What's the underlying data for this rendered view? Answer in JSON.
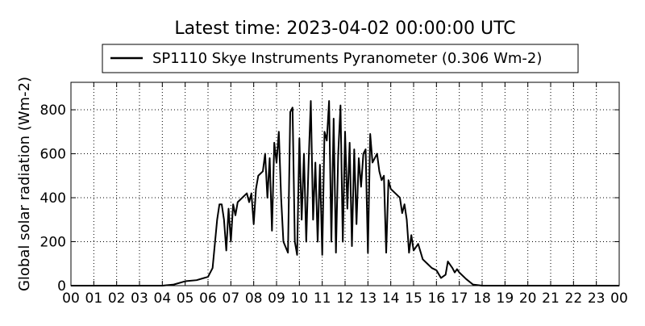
{
  "chart_data": {
    "type": "line",
    "title": "Latest time: 2023-04-02 00:00:00 UTC",
    "y_label": "Global solar radiation (Wm-2)",
    "legend_position": "upper center",
    "grid": true,
    "xlim": [
      0,
      24
    ],
    "xticks": [
      {
        "value": 0,
        "label": "00"
      },
      {
        "value": 1,
        "label": "01"
      },
      {
        "value": 2,
        "label": "02"
      },
      {
        "value": 3,
        "label": "03"
      },
      {
        "value": 4,
        "label": "04"
      },
      {
        "value": 5,
        "label": "05"
      },
      {
        "value": 6,
        "label": "06"
      },
      {
        "value": 7,
        "label": "07"
      },
      {
        "value": 8,
        "label": "08"
      },
      {
        "value": 9,
        "label": "09"
      },
      {
        "value": 10,
        "label": "10"
      },
      {
        "value": 11,
        "label": "11"
      },
      {
        "value": 12,
        "label": "12"
      },
      {
        "value": 13,
        "label": "13"
      },
      {
        "value": 14,
        "label": "14"
      },
      {
        "value": 15,
        "label": "15"
      },
      {
        "value": 16,
        "label": "16"
      },
      {
        "value": 17,
        "label": "17"
      },
      {
        "value": 18,
        "label": "18"
      },
      {
        "value": 19,
        "label": "19"
      },
      {
        "value": 20,
        "label": "20"
      },
      {
        "value": 21,
        "label": "21"
      },
      {
        "value": 22,
        "label": "22"
      },
      {
        "value": 23,
        "label": "23"
      },
      {
        "value": 24,
        "label": "00"
      }
    ],
    "ylim": [
      0,
      925
    ],
    "yticks": [
      0,
      200,
      400,
      600,
      800
    ],
    "x": [
      0,
      4,
      4.5,
      5,
      5.5,
      6,
      6.2,
      6.4,
      6.5,
      6.6,
      6.7,
      6.8,
      6.9,
      7.0,
      7.1,
      7.2,
      7.3,
      7.5,
      7.7,
      7.8,
      7.9,
      8.0,
      8.1,
      8.2,
      8.4,
      8.5,
      8.6,
      8.7,
      8.8,
      8.9,
      9.0,
      9.1,
      9.2,
      9.3,
      9.5,
      9.6,
      9.7,
      9.8,
      9.9,
      10.0,
      10.1,
      10.2,
      10.3,
      10.4,
      10.5,
      10.6,
      10.7,
      10.8,
      10.9,
      11.0,
      11.1,
      11.2,
      11.3,
      11.4,
      11.5,
      11.6,
      11.7,
      11.8,
      11.9,
      12.0,
      12.1,
      12.2,
      12.3,
      12.4,
      12.5,
      12.6,
      12.7,
      12.8,
      12.9,
      13.0,
      13.1,
      13.2,
      13.4,
      13.5,
      13.6,
      13.7,
      13.8,
      13.9,
      14.0,
      14.2,
      14.4,
      14.5,
      14.6,
      14.7,
      14.8,
      14.9,
      15.0,
      15.2,
      15.4,
      15.6,
      15.8,
      16.0,
      16.2,
      16.4,
      16.5,
      16.7,
      16.8,
      16.9,
      17.0,
      17.3,
      17.6,
      18,
      24
    ],
    "series": [
      {
        "name": "SP1110 Skye Instruments Pyranometer (0.306 Wm-2)",
        "color": "#000000",
        "values": [
          0,
          0,
          5,
          20,
          25,
          40,
          80,
          300,
          370,
          370,
          300,
          160,
          350,
          200,
          370,
          320,
          380,
          400,
          420,
          380,
          420,
          280,
          440,
          500,
          520,
          600,
          400,
          580,
          250,
          650,
          560,
          700,
          400,
          200,
          150,
          790,
          810,
          200,
          140,
          670,
          300,
          600,
          200,
          550,
          840,
          300,
          560,
          200,
          550,
          140,
          700,
          660,
          840,
          200,
          760,
          150,
          600,
          820,
          200,
          700,
          350,
          650,
          180,
          620,
          280,
          580,
          450,
          600,
          620,
          150,
          690,
          560,
          600,
          520,
          480,
          500,
          150,
          480,
          440,
          420,
          400,
          330,
          370,
          300,
          150,
          230,
          160,
          190,
          120,
          100,
          80,
          70,
          35,
          50,
          110,
          80,
          60,
          75,
          60,
          30,
          5,
          0,
          0
        ]
      }
    ]
  }
}
